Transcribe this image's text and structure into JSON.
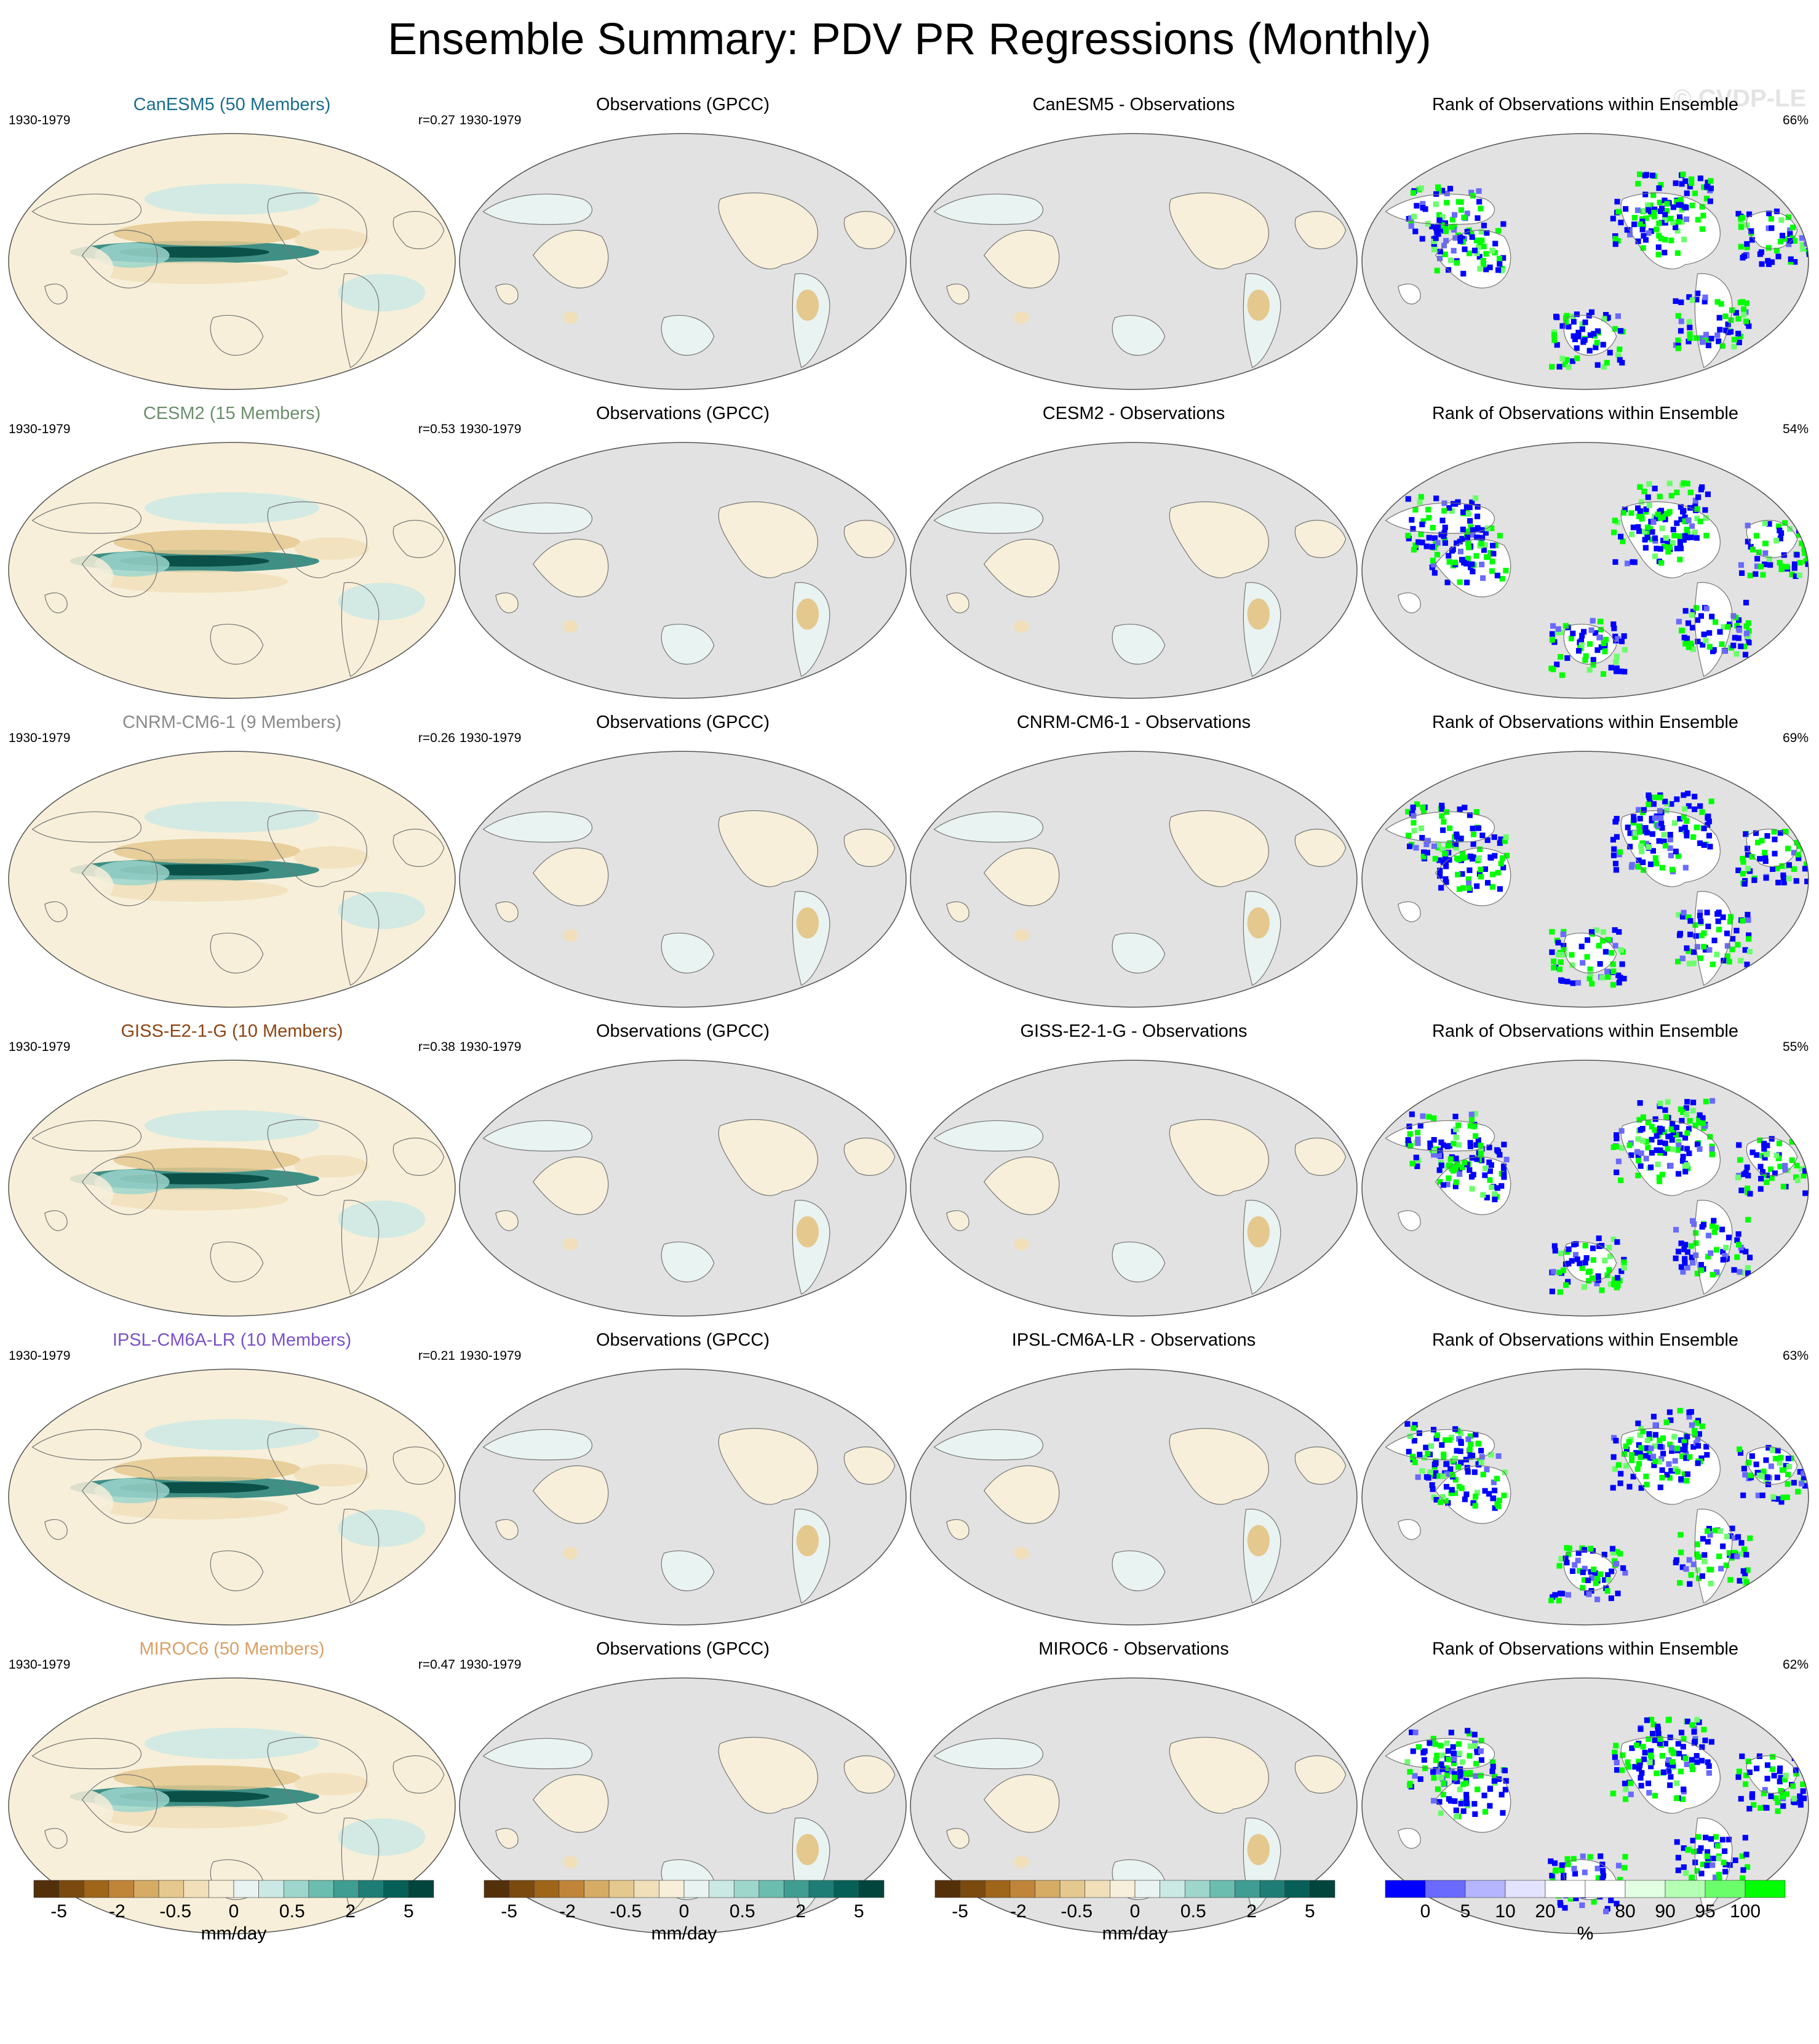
{
  "title": "Ensemble Summary: PDV PR Regressions (Monthly)",
  "watermark": "© CVDP-LE",
  "colors": {
    "brown_to_teal": [
      "#54300a",
      "#7b4a0f",
      "#9f6519",
      "#c08538",
      "#d6ab64",
      "#e5c88e",
      "#f1dfba",
      "#f7efd9",
      "#e9f3f1",
      "#cbe9e4",
      "#9ed6cc",
      "#6bbdb0",
      "#3f9d92",
      "#1e7e75",
      "#076057",
      "#01453d"
    ],
    "rank": [
      "#0000ff",
      "#6a6aff",
      "#b4b4ff",
      "#e3e3ff",
      "#ffffff",
      "#ffffff",
      "#e3ffe3",
      "#b4ffb4",
      "#6aff6a",
      "#00ff00"
    ],
    "ocean_obs": "#e2e2e2"
  },
  "rows": [
    {
      "model": {
        "title": "CanESM5 (50 Members)",
        "title_color": "#1b6e8e",
        "years": "1930-1979",
        "r": "r=0.27"
      },
      "obs": {
        "title": "Observations (GPCC)",
        "years": "1930-1979"
      },
      "diff": {
        "title": "CanESM5 - Observations"
      },
      "rank": {
        "title": "Rank of Observations within Ensemble",
        "pct": "66%"
      }
    },
    {
      "model": {
        "title": "CESM2 (15 Members)",
        "title_color": "#6b8f6b",
        "years": "1930-1979",
        "r": "r=0.53"
      },
      "obs": {
        "title": "Observations (GPCC)",
        "years": "1930-1979"
      },
      "diff": {
        "title": "CESM2 - Observations"
      },
      "rank": {
        "title": "Rank of Observations within Ensemble",
        "pct": "54%"
      }
    },
    {
      "model": {
        "title": "CNRM-CM6-1 (9 Members)",
        "title_color": "#8a8a8a",
        "years": "1930-1979",
        "r": "r=0.26"
      },
      "obs": {
        "title": "Observations (GPCC)",
        "years": "1930-1979"
      },
      "diff": {
        "title": "CNRM-CM6-1 - Observations"
      },
      "rank": {
        "title": "Rank of Observations within Ensemble",
        "pct": "69%"
      }
    },
    {
      "model": {
        "title": "GISS-E2-1-G (10 Members)",
        "title_color": "#8b4513",
        "years": "1930-1979",
        "r": "r=0.38"
      },
      "obs": {
        "title": "Observations (GPCC)",
        "years": "1930-1979"
      },
      "diff": {
        "title": "GISS-E2-1-G - Observations"
      },
      "rank": {
        "title": "Rank of Observations within Ensemble",
        "pct": "55%"
      }
    },
    {
      "model": {
        "title": "IPSL-CM6A-LR (10 Members)",
        "title_color": "#7b52c8",
        "years": "1930-1979",
        "r": "r=0.21"
      },
      "obs": {
        "title": "Observations (GPCC)",
        "years": "1930-1979"
      },
      "diff": {
        "title": "IPSL-CM6A-LR - Observations"
      },
      "rank": {
        "title": "Rank of Observations within Ensemble",
        "pct": "63%"
      }
    },
    {
      "model": {
        "title": "MIROC6 (50 Members)",
        "title_color": "#d9a066",
        "years": "1930-1979",
        "r": "r=0.47"
      },
      "obs": {
        "title": "Observations (GPCC)",
        "years": "1930-1979"
      },
      "diff": {
        "title": "MIROC6 - Observations"
      },
      "rank": {
        "title": "Rank of Observations within Ensemble",
        "pct": "62%"
      }
    }
  ],
  "colorbars": [
    {
      "labels": [
        "-5",
        "-2",
        "-0.5",
        "0",
        "0.5",
        "2",
        "5"
      ],
      "unit": "mm/day"
    },
    {
      "labels": [
        "-5",
        "-2",
        "-0.5",
        "0",
        "0.5",
        "2",
        "5"
      ],
      "unit": "mm/day"
    },
    {
      "labels": [
        "-5",
        "-2",
        "-0.5",
        "0",
        "0.5",
        "2",
        "5"
      ],
      "unit": "mm/day"
    },
    {
      "labels": [
        "0",
        "5",
        "10",
        "20",
        "80",
        "90",
        "95",
        "100"
      ],
      "unit": "%"
    }
  ],
  "chart_data": {
    "type": "heatmap",
    "title": "Ensemble Summary: PDV PR Regressions (Monthly)",
    "row_labels": [
      "CanESM5 (50 Members)",
      "CESM2 (15 Members)",
      "CNRM-CM6-1 (9 Members)",
      "GISS-E2-1-G (10 Members)",
      "IPSL-CM6A-LR (10 Members)",
      "MIROC6 (50 Members)"
    ],
    "column_titles": [
      "Observations (GPCC)",
      "Rank of Observations within Ensemble"
    ],
    "period": "1930-1979",
    "pattern_correlation": [
      0.27,
      0.53,
      0.26,
      0.38,
      0.21,
      0.47
    ],
    "rank_percent": [
      66,
      54,
      69,
      55,
      63,
      62
    ],
    "regression_levels": [
      -5,
      -2,
      -0.5,
      0,
      0.5,
      2,
      5
    ],
    "rank_levels": [
      0,
      5,
      10,
      20,
      80,
      90,
      95,
      100
    ],
    "units": [
      "mm/day",
      "%"
    ]
  }
}
